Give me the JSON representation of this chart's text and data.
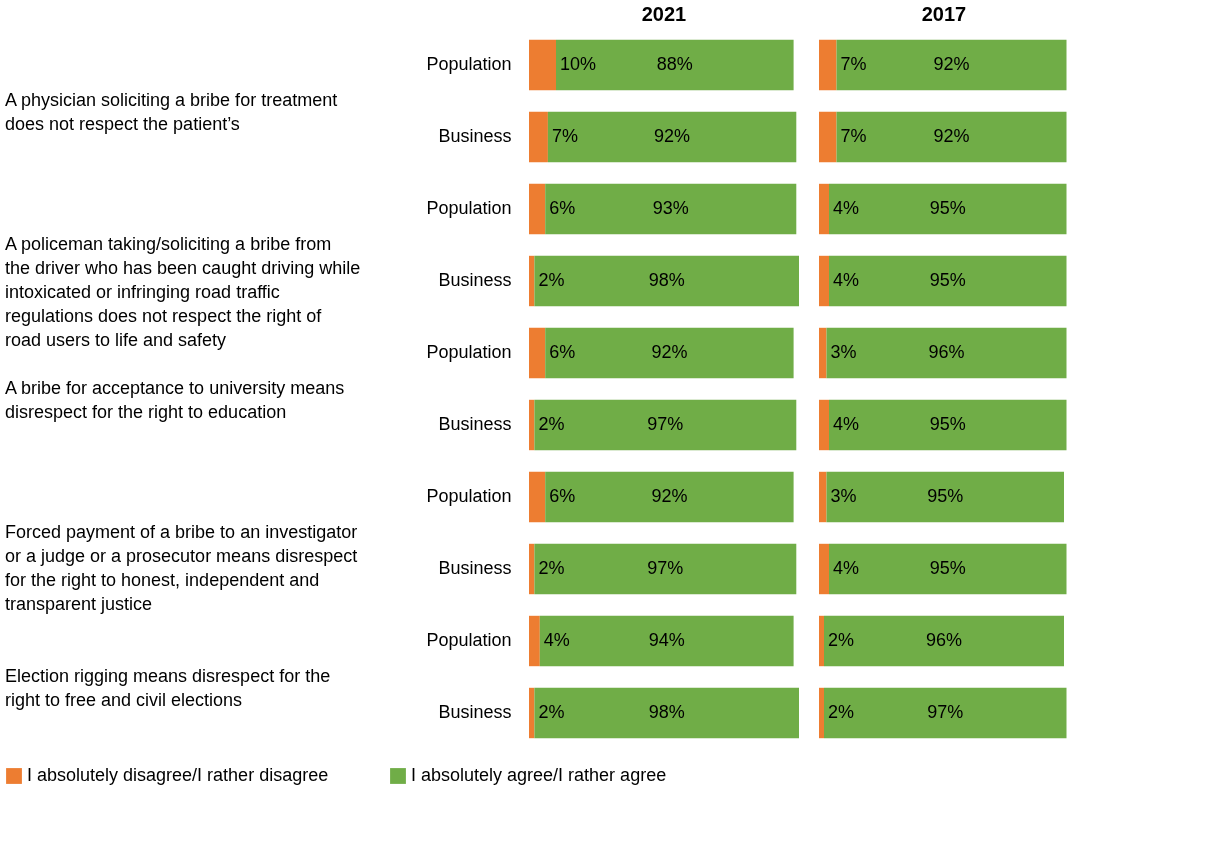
{
  "chart_data": [
    {
      "type": "bar",
      "orientation": "horizontal",
      "stacked": true,
      "title": "2021",
      "categories": [
        "Population",
        "Business",
        "Population",
        "Business",
        "Population",
        "Business",
        "Population",
        "Business",
        "Population",
        "Business"
      ],
      "series": [
        {
          "name": "I absolutely disagree/I rather disagree",
          "color": "#ed7d31",
          "values": [
            10,
            7,
            6,
            2,
            6,
            2,
            6,
            2,
            4,
            2
          ],
          "value_labels": [
            "10%",
            "7%",
            "6%",
            "2%",
            "6%",
            "2%",
            "6%",
            "2%",
            "4%",
            "2%"
          ]
        },
        {
          "name": "I absolutely agree/I rather agree",
          "color": "#70ad47",
          "values": [
            88,
            92,
            93,
            98,
            92,
            97,
            92,
            97,
            94,
            98
          ],
          "value_labels": [
            "88%",
            "92%",
            "93%",
            "98%",
            "92%",
            "97%",
            "92%",
            "97%",
            "94%",
            "98%"
          ]
        }
      ],
      "xlim": [
        0,
        100
      ],
      "tick_labels": "y",
      "legend": "bottom",
      "annotations": [
        "A physician soliciting a bribe for treatment does not respect the patient’s",
        "A policeman taking/soliciting a bribe from the driver who has been caught driving while intoxicated or infringing road traffic regulations does not respect the right of road users to life and safety",
        "A bribe for acceptance to university means disrespect for the right to education",
        "Forced payment of a bribe to an investigator or a judge or a prosecutor means disrespect for the right to honest, independent and transparent justice",
        "Election rigging means disrespect for the right to free and civil elections"
      ]
    },
    {
      "type": "bar",
      "orientation": "horizontal",
      "stacked": true,
      "title": "2017",
      "categories": [
        "Population",
        "Business",
        "Population",
        "Business",
        "Population",
        "Business",
        "Population",
        "Business",
        "Population",
        "Business"
      ],
      "series": [
        {
          "name": "I absolutely disagree/I rather disagree",
          "color": "#ed7d31",
          "values": [
            7,
            7,
            4,
            4,
            3,
            4,
            3,
            4,
            2,
            2
          ],
          "value_labels": [
            "7%",
            "7%",
            "4%",
            "4%",
            "3%",
            "4%",
            "3%",
            "4%",
            "2%",
            "2%"
          ]
        },
        {
          "name": "I absolutely agree/I rather agree",
          "color": "#70ad47",
          "values": [
            92,
            92,
            95,
            95,
            96,
            95,
            95,
            95,
            96,
            97
          ],
          "value_labels": [
            "92%",
            "92%",
            "95%",
            "95%",
            "96%",
            "95%",
            "95%",
            "95%",
            "96%",
            "97%"
          ]
        }
      ],
      "xlim": [
        0,
        100
      ],
      "tick_labels": false,
      "legend": "bottom"
    }
  ]
}
